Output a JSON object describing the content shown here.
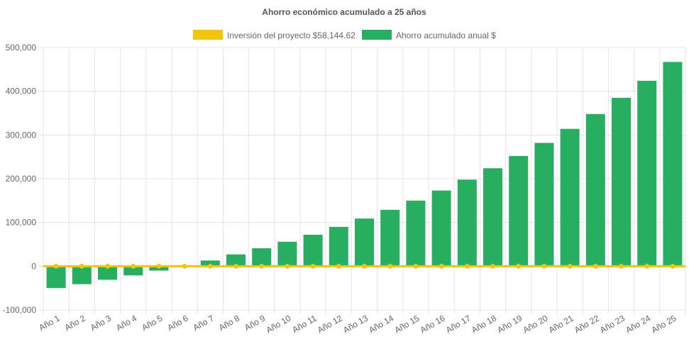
{
  "chart_data": {
    "type": "bar",
    "title": "Ahorro económico acumulado a 25 años",
    "legend_position": "top",
    "grid": true,
    "categories": [
      "Año 1",
      "Año 2",
      "Año 3",
      "Año 4",
      "Año 5",
      "Año 6",
      "Año 7",
      "Año 8",
      "Año 9",
      "Año 10",
      "Año 11",
      "Año 12",
      "Año 13",
      "Año 14",
      "Año 15",
      "Año 16",
      "Año 17",
      "Año 18",
      "Año 19",
      "Año 20",
      "Año 21",
      "Año 22",
      "Año 23",
      "Año 24",
      "Año 25"
    ],
    "ylim": [
      -100000,
      500000
    ],
    "yticks": [
      -100000,
      0,
      100000,
      200000,
      300000,
      400000,
      500000
    ],
    "ytick_labels": [
      "-100,000",
      "0",
      "100,000",
      "200,000",
      "300,000",
      "400,000",
      "500,000"
    ],
    "series": [
      {
        "name": "Inversión del proyecto $58,144.62",
        "type": "line",
        "color": "#f1c40f",
        "values": [
          0,
          0,
          0,
          0,
          0,
          0,
          0,
          0,
          0,
          0,
          0,
          0,
          0,
          0,
          0,
          0,
          0,
          0,
          0,
          0,
          0,
          0,
          0,
          0,
          0
        ]
      },
      {
        "name": "Ahorro acumulado anual $",
        "type": "bar",
        "color": "#27ae60",
        "values": [
          -50000,
          -41000,
          -31000,
          -21000,
          -10000,
          1000,
          13000,
          27000,
          41000,
          56000,
          72000,
          90000,
          109000,
          129000,
          150000,
          173000,
          198000,
          224000,
          252000,
          282000,
          314000,
          348000,
          385000,
          424000,
          467000
        ]
      }
    ]
  }
}
